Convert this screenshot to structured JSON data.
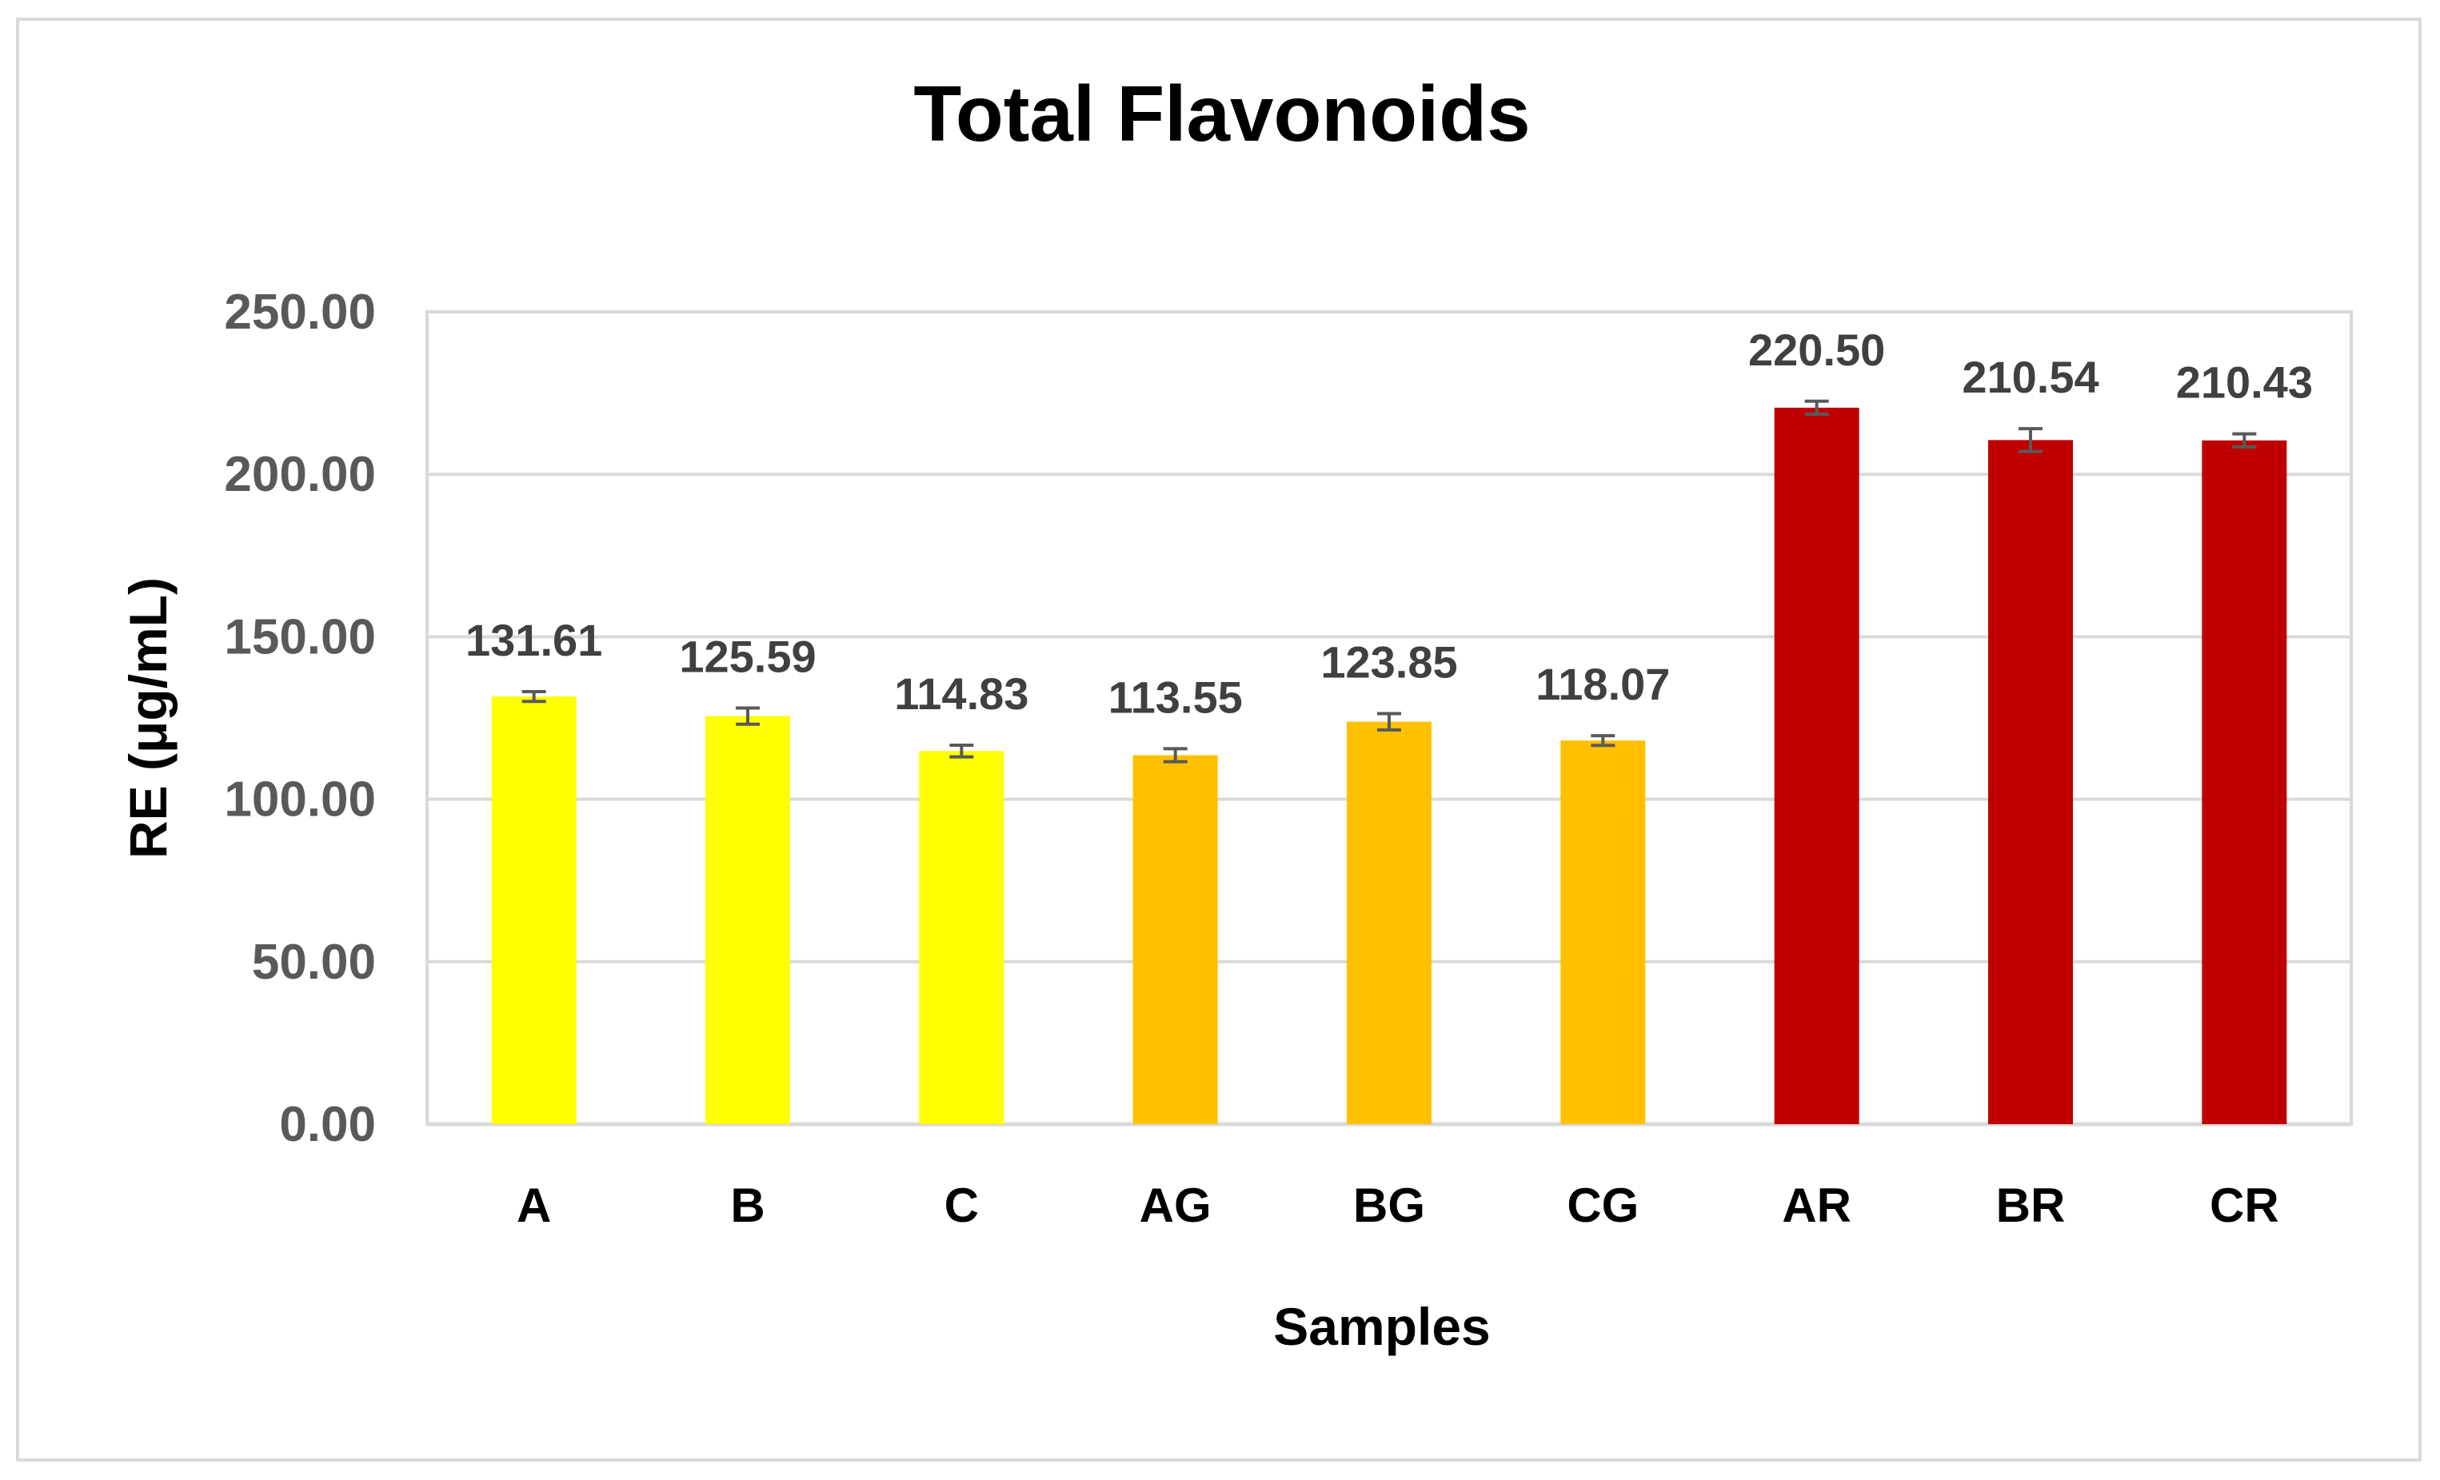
{
  "chart_data": {
    "type": "bar",
    "title": "Total Flavonoids",
    "xlabel": "Samples",
    "ylabel": "RE (μg/mL)",
    "ylim": [
      0,
      250
    ],
    "yticks": [
      0,
      50,
      100,
      150,
      200,
      250
    ],
    "ytick_labels": [
      "0.00",
      "50.00",
      "100.00",
      "150.00",
      "200.00",
      "250.00"
    ],
    "grid": true,
    "categories": [
      "A",
      "B",
      "C",
      "AG",
      "BG",
      "CG",
      "AR",
      "BR",
      "CR"
    ],
    "values": [
      131.61,
      125.59,
      114.83,
      113.55,
      123.85,
      118.07,
      220.5,
      210.54,
      210.43
    ],
    "value_labels": [
      "131.61",
      "125.59",
      "114.83",
      "113.55",
      "123.85",
      "118.07",
      "220.50",
      "210.54",
      "210.43"
    ],
    "errors": [
      1.5,
      2.5,
      1.8,
      2.0,
      2.5,
      1.5,
      2.0,
      3.5,
      2.0
    ],
    "colors": [
      "#FFFF00",
      "#FFFF00",
      "#FFFF00",
      "#FFC000",
      "#FFC000",
      "#FFC000",
      "#C00000",
      "#C00000",
      "#C00000"
    ],
    "gridline_color": "#d9d9d9",
    "errorbar_color": "#595959"
  }
}
